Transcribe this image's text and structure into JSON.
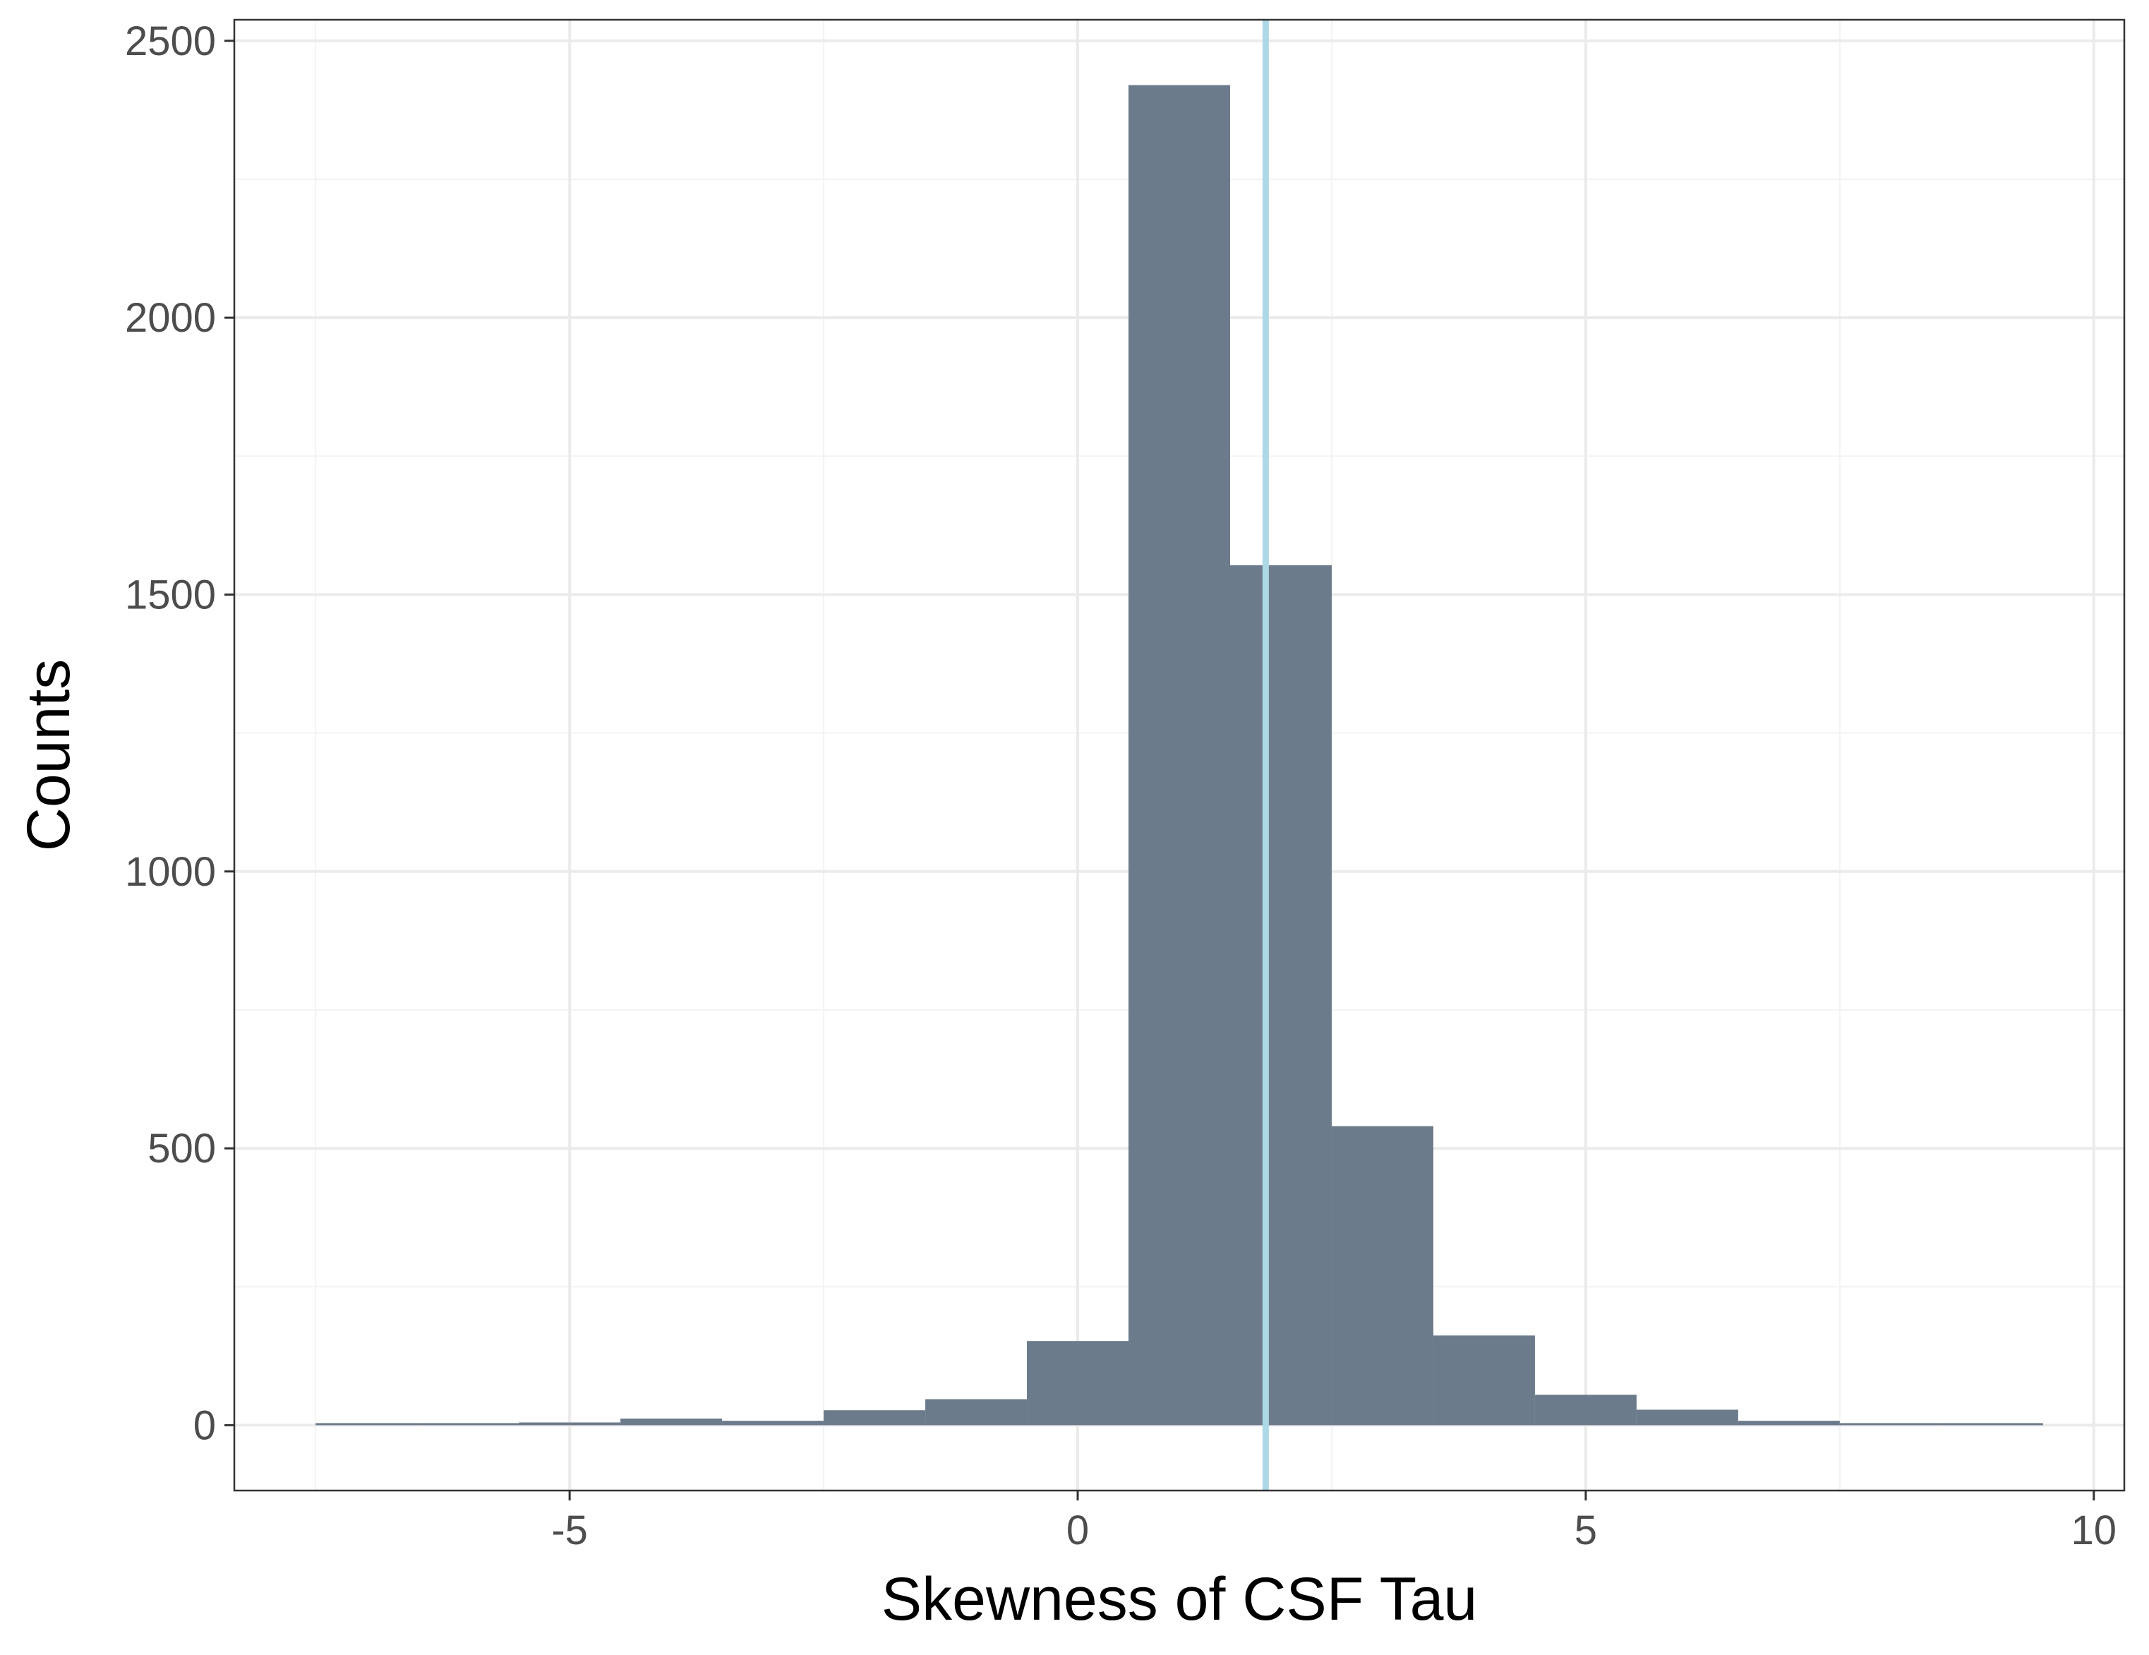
{
  "chart_data": {
    "type": "bar",
    "subtype": "histogram",
    "title": "",
    "xlabel": "Skewness of CSF Tau",
    "ylabel": "Counts",
    "xlim": [
      -8.3,
      10.3
    ],
    "ylim": [
      -118,
      2538
    ],
    "x_ticks": [
      -5,
      0,
      5,
      10
    ],
    "x_tick_labels": [
      "-5",
      "0",
      "5",
      "10"
    ],
    "y_ticks": [
      0,
      500,
      1000,
      1500,
      2000,
      2500
    ],
    "y_tick_labels": [
      "0",
      "500",
      "1000",
      "1500",
      "2000",
      "2500"
    ],
    "grid": true,
    "legend": "none",
    "bin_width": 1,
    "bin_centers": [
      -7,
      -6,
      -5,
      -4,
      -3,
      -2,
      -1,
      0,
      1,
      2,
      3,
      4,
      5,
      6,
      7,
      8,
      9
    ],
    "values": [
      2,
      1,
      5,
      12,
      8,
      27,
      47,
      152,
      2420,
      1553,
      540,
      162,
      55,
      28,
      8,
      3,
      3
    ],
    "vline": {
      "x": 1.85,
      "color": "#add8e6"
    },
    "colors": {
      "bar": "#6c7b8b",
      "vline": "#add8e6",
      "grid_major": "#ebebeb",
      "grid_minor": "#f3f3f3",
      "panel_border": "#333333",
      "tick_text": "#4d4d4d"
    }
  }
}
